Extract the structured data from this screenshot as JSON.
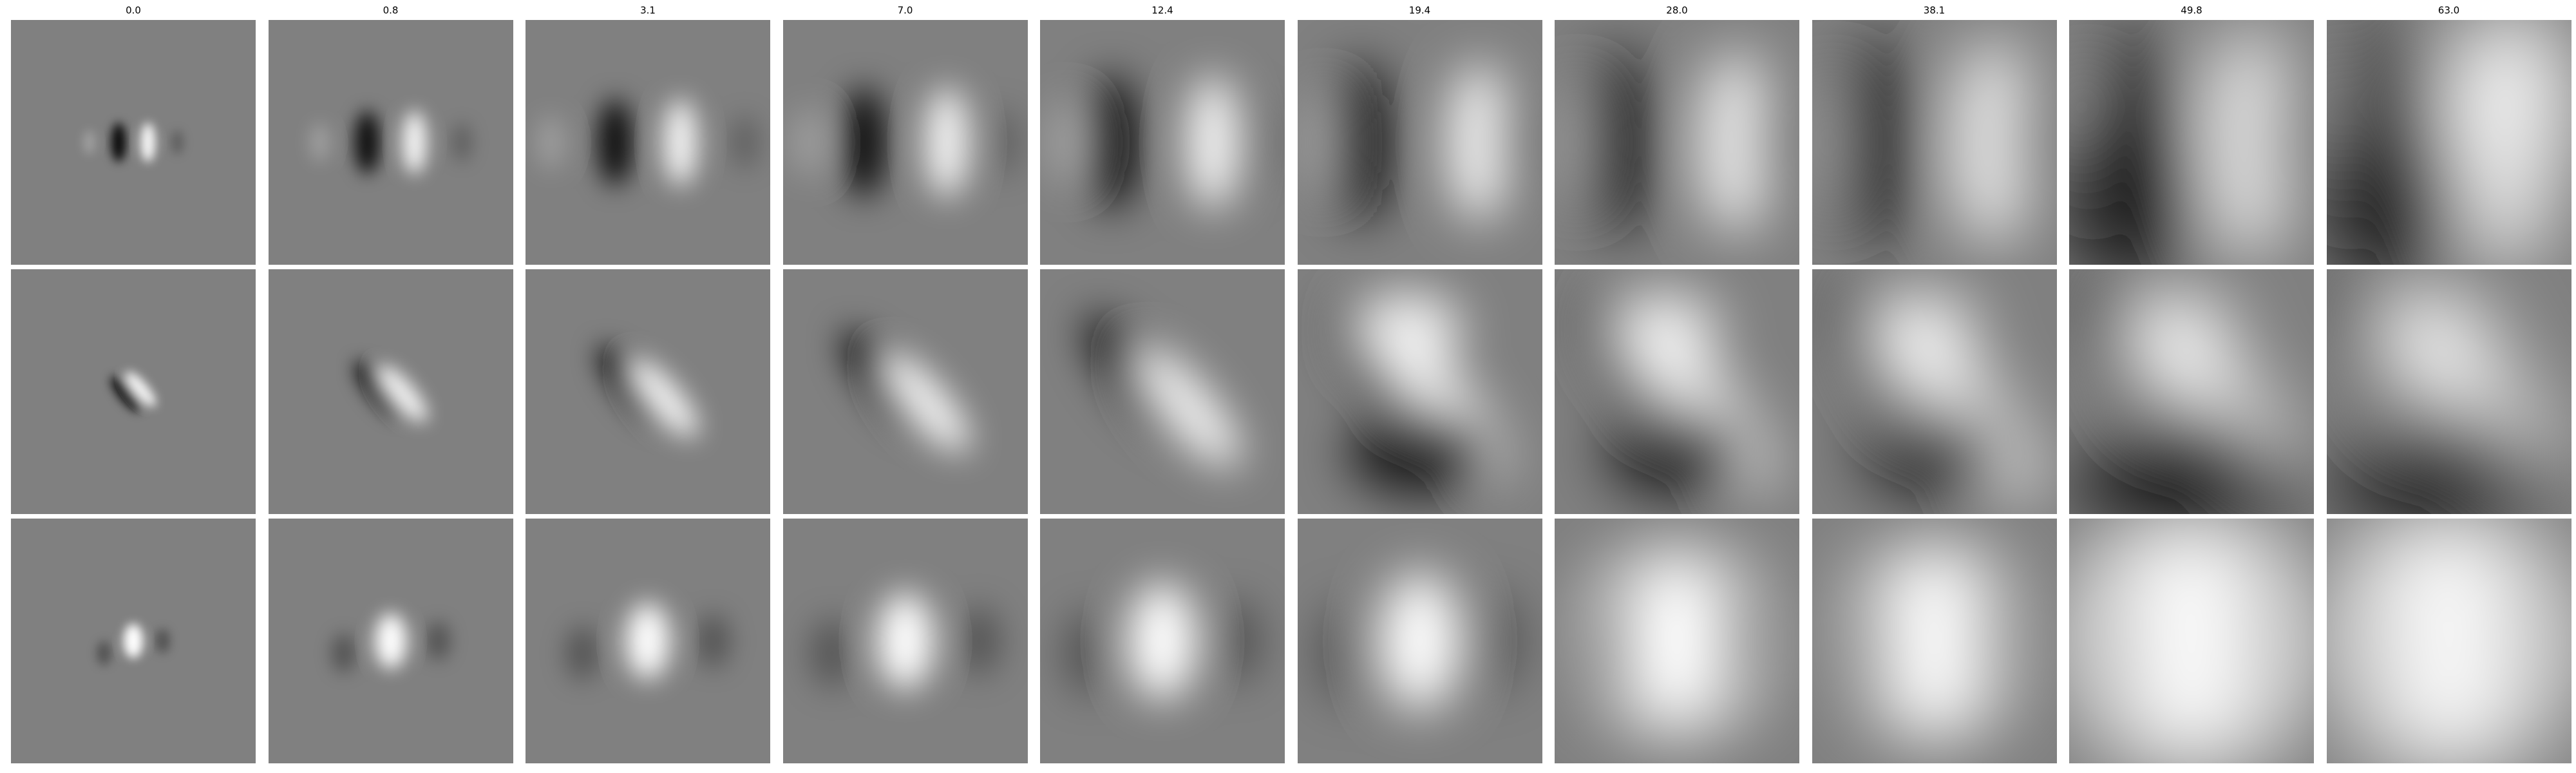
{
  "figure": {
    "column_titles": [
      "0.0",
      "0.8",
      "3.1",
      "7.0",
      "12.4",
      "19.4",
      "28.0",
      "38.1",
      "49.8",
      "63.0"
    ],
    "rows": 3,
    "colormap": "grayscale",
    "background": "#808080"
  }
}
